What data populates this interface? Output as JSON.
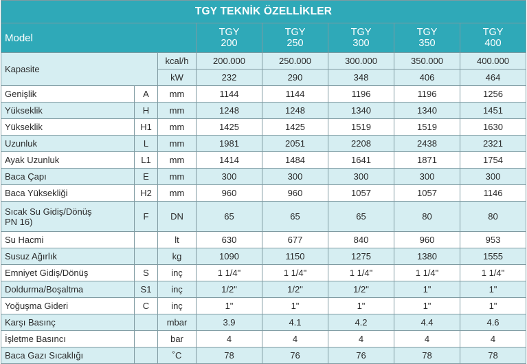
{
  "title": "TGY TEKNİK ÖZELLİKLER",
  "header": {
    "label": "Model",
    "models": [
      {
        "line1": "TGY",
        "line2": "200"
      },
      {
        "line1": "TGY",
        "line2": "250"
      },
      {
        "line1": "TGY",
        "line2": "300"
      },
      {
        "line1": "TGY",
        "line2": "350"
      },
      {
        "line1": "TGY",
        "line2": "400"
      }
    ]
  },
  "capacity": {
    "label": "Kapasite",
    "rows": [
      {
        "unit": "kcal/h",
        "values": [
          "200.000",
          "250.000",
          "300.000",
          "350.000",
          "400.000"
        ]
      },
      {
        "unit": "kW",
        "values": [
          "232",
          "290",
          "348",
          "406",
          "464"
        ]
      }
    ]
  },
  "rows": [
    {
      "label": "Genişlik",
      "code": "A",
      "unit": "mm",
      "values": [
        "1144",
        "1144",
        "1196",
        "1196",
        "1256"
      ]
    },
    {
      "label": "Yükseklik",
      "code": "H",
      "unit": "mm",
      "values": [
        "1248",
        "1248",
        "1340",
        "1340",
        "1451"
      ]
    },
    {
      "label": "Yükseklik",
      "code": "H1",
      "unit": "mm",
      "values": [
        "1425",
        "1425",
        "1519",
        "1519",
        "1630"
      ]
    },
    {
      "label": "Uzunluk",
      "code": "L",
      "unit": "mm",
      "values": [
        "1981",
        "2051",
        "2208",
        "2438",
        "2321"
      ]
    },
    {
      "label": "Ayak Uzunluk",
      "code": "L1",
      "unit": "mm",
      "values": [
        "1414",
        "1484",
        "1641",
        "1871",
        "1754"
      ]
    },
    {
      "label": "Baca Çapı",
      "code": "E",
      "unit": "mm",
      "values": [
        "300",
        "300",
        "300",
        "300",
        "300"
      ]
    },
    {
      "label": "Baca Yüksekliği",
      "code": "H2",
      "unit": "mm",
      "values": [
        "960",
        "960",
        "1057",
        "1057",
        "1146"
      ]
    },
    {
      "label_line1": "Sıcak Su Gidiş/Dönüş",
      "label_line2": "PN 16)",
      "code": "F",
      "unit": "DN",
      "values": [
        "65",
        "65",
        "65",
        "80",
        "80"
      ]
    },
    {
      "label": "Su Hacmi",
      "code": "",
      "unit": "lt",
      "values": [
        "630",
        "677",
        "840",
        "960",
        "953"
      ]
    },
    {
      "label": "Susuz Ağırlık",
      "code": "",
      "unit": "kg",
      "values": [
        "1090",
        "1150",
        "1275",
        "1380",
        "1555"
      ]
    },
    {
      "label": "Emniyet Gidiş/Dönüş",
      "code": "S",
      "unit": "inç",
      "values": [
        "1 1/4\"",
        "1 1/4\"",
        "1 1/4\"",
        "1 1/4\"",
        "1 1/4\""
      ]
    },
    {
      "label": "Doldurma/Boşaltma",
      "code": "S1",
      "unit": "inç",
      "values": [
        "1/2\"",
        "1/2\"",
        "1/2\"",
        "1\"",
        "1\""
      ]
    },
    {
      "label": "Yoğuşma Gideri",
      "code": "C",
      "unit": "inç",
      "values": [
        "1\"",
        "1\"",
        "1\"",
        "1\"",
        "1\""
      ]
    },
    {
      "label": "Karşı Basınç",
      "code": "",
      "unit": "mbar",
      "values": [
        "3.9",
        "4.1",
        "4.2",
        "4.4",
        "4.6"
      ]
    },
    {
      "label": "İşletme Basıncı",
      "code": "",
      "unit": "bar",
      "values": [
        "4",
        "4",
        "4",
        "4",
        "4"
      ]
    },
    {
      "label": "Baca Gazı Sıcaklığı",
      "code": "",
      "unit": "˚C",
      "values": [
        "78",
        "76",
        "76",
        "78",
        "78"
      ]
    }
  ]
}
